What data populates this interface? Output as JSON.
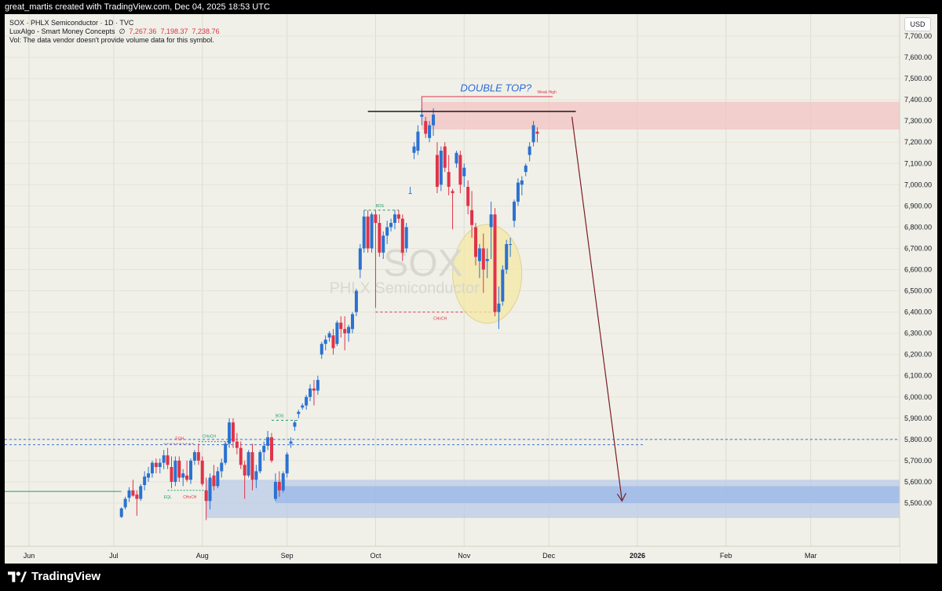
{
  "header": {
    "text": "great_martis created with TradingView.com, Dec 04, 2025 18:53 UTC"
  },
  "legend": {
    "line1": "SOX · PHLX Semiconductor · 1D · TVC",
    "line2_name": "LuxAlgo - Smart Money Concepts",
    "line2_icon": "∅",
    "line2_values": [
      "7,267.36",
      "7,198.37",
      "7,238.76"
    ],
    "line3": "Vol: The data vendor doesn't provide volume data for this symbol."
  },
  "currency": "USD",
  "watermark": {
    "symbol": "SOX",
    "name": "PHLX Semiconductor"
  },
  "annotations": {
    "double_top": "DOUBLE TOP?",
    "weak_high": "Weak High",
    "bos": "BOS",
    "choch": "CHoCH",
    "eqh": "EQH",
    "eql": "EQL"
  },
  "brand": {
    "name": "TradingView"
  },
  "colors": {
    "up": "#2a72d0",
    "down": "#e0334a",
    "bg": "#f0f0e8",
    "arrow": "#7a1e24",
    "ellipse": "#f5e9a6"
  },
  "chart_data": {
    "type": "candlestick",
    "symbol": "SOX",
    "timeframe": "1D",
    "y_axis": {
      "min": 5420,
      "max": 7740,
      "ticks": [
        5500,
        5600,
        5700,
        5800,
        5900,
        6000,
        6100,
        6200,
        6300,
        6400,
        6500,
        6600,
        6700,
        6800,
        6900,
        7000,
        7100,
        7200,
        7300,
        7400,
        7500,
        7600,
        7700
      ]
    },
    "x_axis": {
      "labels": [
        "Jun",
        "Jul",
        "Aug",
        "Sep",
        "Oct",
        "Nov",
        "Dec",
        "2026",
        "Feb",
        "Mar"
      ],
      "positions": [
        0,
        22,
        45,
        67,
        90,
        113,
        135,
        158,
        181,
        203
      ]
    },
    "candles": [
      [
        24,
        5435,
        5480,
        5430,
        5475
      ],
      [
        25,
        5480,
        5530,
        5470,
        5520
      ],
      [
        26,
        5525,
        5575,
        5505,
        5560
      ],
      [
        27,
        5560,
        5610,
        5530,
        5535
      ],
      [
        28,
        5540,
        5560,
        5440,
        5520
      ],
      [
        29,
        5520,
        5590,
        5510,
        5580
      ],
      [
        30,
        5585,
        5650,
        5560,
        5625
      ],
      [
        31,
        5620,
        5670,
        5600,
        5640
      ],
      [
        32,
        5640,
        5700,
        5620,
        5690
      ],
      [
        33,
        5690,
        5710,
        5640,
        5670
      ],
      [
        34,
        5670,
        5710,
        5640,
        5690
      ],
      [
        35,
        5690,
        5750,
        5660,
        5725
      ],
      [
        36,
        5725,
        5760,
        5660,
        5680
      ],
      [
        37,
        5670,
        5720,
        5570,
        5600
      ],
      [
        38,
        5600,
        5720,
        5580,
        5700
      ],
      [
        39,
        5700,
        5720,
        5600,
        5620
      ],
      [
        40,
        5620,
        5660,
        5580,
        5640
      ],
      [
        41,
        5630,
        5700,
        5600,
        5610
      ],
      [
        42,
        5610,
        5710,
        5590,
        5700
      ],
      [
        43,
        5700,
        5750,
        5680,
        5740
      ],
      [
        44,
        5740,
        5780,
        5680,
        5700
      ],
      [
        45,
        5700,
        5720,
        5580,
        5590
      ],
      [
        46,
        5560,
        5620,
        5420,
        5510
      ],
      [
        47,
        5510,
        5640,
        5470,
        5620
      ],
      [
        48,
        5630,
        5680,
        5560,
        5580
      ],
      [
        49,
        5580,
        5670,
        5570,
        5650
      ],
      [
        50,
        5650,
        5710,
        5620,
        5690
      ],
      [
        51,
        5690,
        5790,
        5680,
        5780
      ],
      [
        52,
        5780,
        5900,
        5760,
        5880
      ],
      [
        53,
        5880,
        5900,
        5760,
        5790
      ],
      [
        54,
        5790,
        5830,
        5730,
        5760
      ],
      [
        55,
        5760,
        5790,
        5660,
        5680
      ],
      [
        56,
        5680,
        5700,
        5520,
        5630
      ],
      [
        57,
        5630,
        5750,
        5620,
        5740
      ],
      [
        58,
        5740,
        5780,
        5560,
        5610
      ],
      [
        59,
        5610,
        5680,
        5570,
        5650
      ],
      [
        60,
        5650,
        5750,
        5640,
        5740
      ],
      [
        61,
        5740,
        5790,
        5700,
        5770
      ],
      [
        62,
        5770,
        5840,
        5750,
        5810
      ],
      [
        63,
        5810,
        5830,
        5690,
        5700
      ],
      [
        64,
        5520,
        5640,
        5510,
        5600
      ],
      [
        65,
        5600,
        5650,
        5530,
        5560
      ],
      [
        66,
        5560,
        5650,
        5550,
        5640
      ],
      [
        67,
        5640,
        5740,
        5620,
        5730
      ],
      [
        68,
        5780,
        5810,
        5760,
        5790
      ],
      [
        69,
        5860,
        5890,
        5840,
        5880
      ],
      [
        70,
        5920,
        5940,
        5900,
        5930
      ],
      [
        71,
        5950,
        5970,
        5940,
        5960
      ],
      [
        72,
        5960,
        6010,
        5940,
        6000
      ],
      [
        73,
        6000,
        6060,
        5980,
        6040
      ],
      [
        74,
        6040,
        6080,
        5960,
        6030
      ],
      [
        75,
        6030,
        6100,
        6010,
        6080
      ],
      [
        76,
        6200,
        6260,
        6180,
        6250
      ],
      [
        77,
        6250,
        6290,
        6220,
        6270
      ],
      [
        78,
        6280,
        6310,
        6260,
        6300
      ],
      [
        79,
        6290,
        6320,
        6200,
        6230
      ],
      [
        80,
        6250,
        6360,
        6240,
        6350
      ],
      [
        81,
        6350,
        6380,
        6280,
        6320
      ],
      [
        82,
        6320,
        6380,
        6220,
        6300
      ],
      [
        83,
        6300,
        6340,
        6260,
        6330
      ],
      [
        84,
        6320,
        6400,
        6300,
        6390
      ],
      [
        85,
        6400,
        6510,
        6380,
        6500
      ],
      [
        86,
        6600,
        6720,
        6560,
        6700
      ],
      [
        87,
        6700,
        6880,
        6680,
        6850
      ],
      [
        88,
        6850,
        6880,
        6680,
        6700
      ],
      [
        89,
        6700,
        6870,
        6680,
        6860
      ],
      [
        90,
        6860,
        6880,
        6420,
        6820
      ],
      [
        91,
        6820,
        6860,
        6660,
        6680
      ],
      [
        92,
        6680,
        6780,
        6650,
        6760
      ],
      [
        93,
        6760,
        6830,
        6720,
        6800
      ],
      [
        94,
        6800,
        6840,
        6780,
        6820
      ],
      [
        95,
        6820,
        6880,
        6790,
        6860
      ],
      [
        96,
        6860,
        6880,
        6820,
        6840
      ],
      [
        97,
        6840,
        6860,
        6640,
        6680
      ],
      [
        98,
        6700,
        6820,
        6680,
        6800
      ],
      [
        99,
        6960,
        6990,
        6960,
        6960
      ],
      [
        100,
        7150,
        7200,
        7120,
        7180
      ],
      [
        101,
        7160,
        7280,
        7140,
        7250
      ],
      [
        102,
        7320,
        7360,
        7280,
        7330
      ],
      [
        103,
        7300,
        7320,
        7220,
        7240
      ],
      [
        104,
        7220,
        7300,
        7200,
        7280
      ],
      [
        105,
        7280,
        7360,
        7230,
        7330
      ],
      [
        106,
        7140,
        7200,
        6960,
        6990
      ],
      [
        107,
        7000,
        7180,
        6970,
        7160
      ],
      [
        108,
        7180,
        7200,
        7060,
        7080
      ],
      [
        109,
        7060,
        7140,
        6950,
        6990
      ],
      [
        110,
        6970,
        6980,
        6790,
        6960
      ],
      [
        111,
        7100,
        7160,
        7080,
        7150
      ],
      [
        112,
        7140,
        7160,
        6960,
        7000
      ],
      [
        113,
        7040,
        7100,
        6990,
        7080
      ],
      [
        114,
        6990,
        7020,
        6860,
        6900
      ],
      [
        115,
        6880,
        6970,
        6750,
        6810
      ],
      [
        116,
        6800,
        6820,
        6620,
        6660
      ],
      [
        117,
        6640,
        6720,
        6560,
        6700
      ],
      [
        118,
        6700,
        6770,
        6490,
        6600
      ],
      [
        119,
        6640,
        6700,
        6560,
        6650
      ],
      [
        120,
        6800,
        6920,
        6650,
        6860
      ],
      [
        121,
        6860,
        6890,
        6380,
        6400
      ],
      [
        122,
        6400,
        6520,
        6320,
        6440
      ],
      [
        123,
        6450,
        6620,
        6430,
        6600
      ],
      [
        124,
        6600,
        6740,
        6580,
        6720
      ],
      [
        125,
        6720,
        6750,
        6660,
        6720
      ],
      [
        126,
        6830,
        6930,
        6800,
        6920
      ],
      [
        127,
        6920,
        7030,
        6900,
        7010
      ],
      [
        128,
        7000,
        7040,
        6950,
        7020
      ],
      [
        129,
        7060,
        7100,
        7040,
        7090
      ],
      [
        130,
        7140,
        7200,
        7110,
        7180
      ],
      [
        131,
        7200,
        7300,
        7180,
        7280
      ],
      [
        132,
        7250,
        7270,
        7200,
        7240
      ]
    ],
    "levels": {
      "double_top": 7345,
      "weak_high": 7400,
      "blue_dashed_1": 5800,
      "blue_dashed_2": 5775,
      "green_line": 5555,
      "choch_line": 6400
    },
    "zones": {
      "supply": [
        7260,
        7390
      ],
      "demand_outer": [
        5430,
        5610
      ],
      "demand_inner": [
        5500,
        5580
      ]
    }
  }
}
